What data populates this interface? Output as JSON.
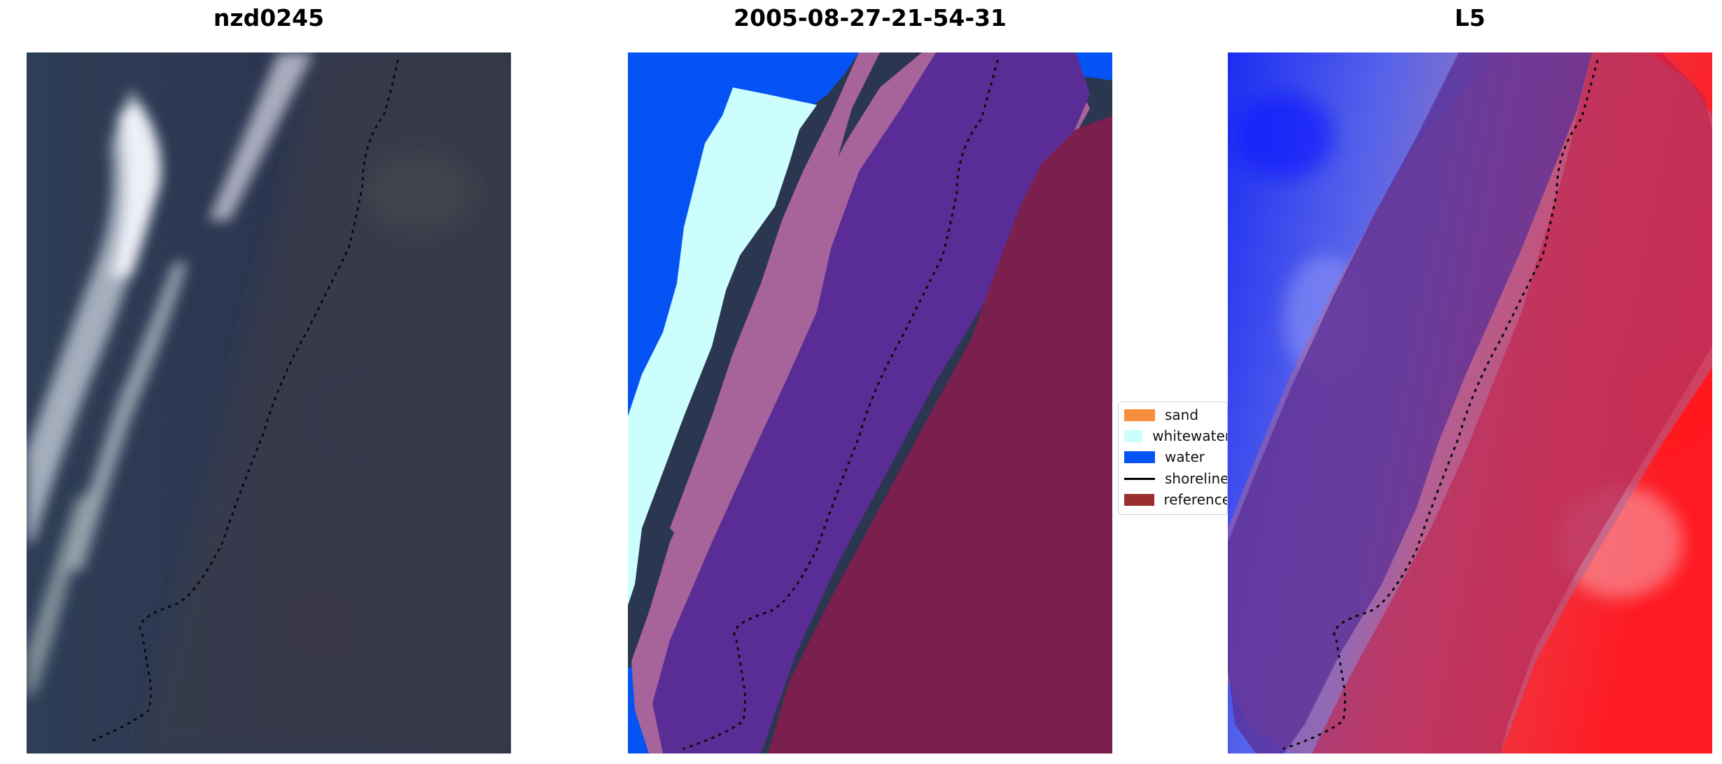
{
  "titles": {
    "left": "nzd0245",
    "middle": "2005-08-27-21-54-31",
    "right": "L5"
  },
  "legend": {
    "items": [
      {
        "label": "sand",
        "color": "#f68e3e",
        "kind": "patch"
      },
      {
        "label": "whitewater",
        "color": "#ccfefd",
        "kind": "patch"
      },
      {
        "label": "water",
        "color": "#0553f5",
        "kind": "patch"
      },
      {
        "label": "shoreline",
        "color": "#000000",
        "kind": "line"
      },
      {
        "label": "reference",
        "color": "#9b2f2f",
        "kind": "patch"
      }
    ]
  },
  "colors": {
    "image_background": "#2b3650",
    "buffer_purple": "#5a2d96",
    "buffer_magenta": "#7a1f4e",
    "buffer_pink": "#a7649a",
    "classifier_blue": "#1e3cf0",
    "classifier_red": "#f02837"
  }
}
